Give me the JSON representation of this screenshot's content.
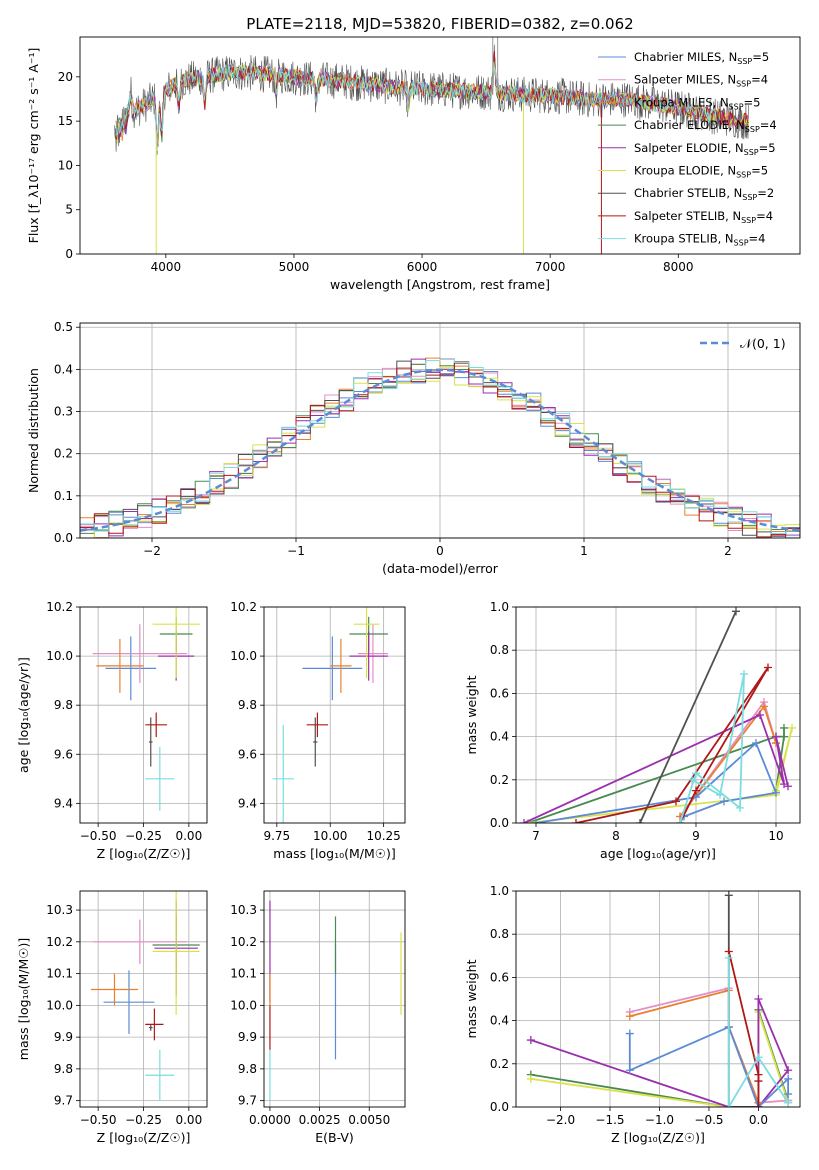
{
  "title": "PLATE=2118, MJD=53820, FIBERID=0382, z=0.062",
  "colors": [
    "#5b8bd6",
    "#e38fc6",
    "#e88030",
    "#4a8a50",
    "#9b2fae",
    "#d9e24a",
    "#505050",
    "#b01818",
    "#7adde0"
  ],
  "chart_data": [
    {
      "name": "spectrum",
      "type": "line",
      "xlabel": "wavelength [Angstrom, rest frame]",
      "ylabel": "Flux [f_λ10⁻¹⁷ erg cm⁻² s⁻¹ A⁻¹]",
      "xlim": [
        3330,
        8950
      ],
      "ylim": [
        0,
        24.5
      ],
      "xticks": [
        4000,
        5000,
        6000,
        7000,
        8000
      ],
      "yticks": [
        0,
        5,
        10,
        15,
        20
      ],
      "grid": false,
      "legend": "upper-right",
      "series": [
        {
          "name": "Chabrier MILES, N",
          "sub": "SSP",
          "suffix": "=5"
        },
        {
          "name": "Salpeter MILES, N",
          "sub": "SSP",
          "suffix": "=4"
        },
        {
          "name": "Kroupa MILES, N",
          "sub": "SSP",
          "suffix": "=5"
        },
        {
          "name": "Chabrier ELODIE, N",
          "sub": "SSP",
          "suffix": "=4"
        },
        {
          "name": "Salpeter ELODIE, N",
          "sub": "SSP",
          "suffix": "=5"
        },
        {
          "name": "Kroupa ELODIE, N",
          "sub": "SSP",
          "suffix": "=5"
        },
        {
          "name": "Chabrier STELIB, N",
          "sub": "SSP",
          "suffix": "=2"
        },
        {
          "name": "Salpeter STELIB, N",
          "sub": "SSP",
          "suffix": "=4"
        },
        {
          "name": "Kroupa STELIB, N",
          "sub": "SSP",
          "suffix": "=4"
        }
      ],
      "continuum": [
        [
          3600,
          14.5
        ],
        [
          3700,
          16
        ],
        [
          3800,
          16.5
        ],
        [
          3950,
          18
        ],
        [
          4100,
          19.5
        ],
        [
          4300,
          20
        ],
        [
          4500,
          20.5
        ],
        [
          4800,
          20.3
        ],
        [
          5100,
          19.8
        ],
        [
          5400,
          19.5
        ],
        [
          5800,
          18.8
        ],
        [
          6200,
          18.5
        ],
        [
          6500,
          18.3
        ],
        [
          6800,
          18
        ],
        [
          7100,
          17.8
        ],
        [
          7300,
          17.4
        ],
        [
          7600,
          17.5
        ],
        [
          8000,
          16.5
        ],
        [
          8300,
          15.5
        ],
        [
          8500,
          15
        ]
      ]
    },
    {
      "name": "residuals",
      "type": "histogram",
      "xlabel": "(data-model)/error",
      "ylabel": "Normed distribution",
      "xlim": [
        -2.5,
        2.5
      ],
      "ylim": [
        0,
        0.51
      ],
      "xticks": [
        -2,
        -1,
        0,
        1,
        2
      ],
      "xticklabels": [
        "−2",
        "−1",
        "0",
        "1",
        "2"
      ],
      "yticks": [
        0,
        0.1,
        0.2,
        0.3,
        0.4,
        0.5
      ],
      "yticklabels": [
        "0.0",
        "0.1",
        "0.2",
        "0.3",
        "0.4",
        "0.5"
      ],
      "bin_width": 0.1,
      "grid": true,
      "legend_label": "𝒩(0, 1)",
      "legend": "upper-right"
    },
    {
      "name": "age-vs-Z",
      "type": "errorbar",
      "xlabel": "Z [log₁₀(Z/Z☉)]",
      "ylabel": "age  [log₁₀(age/yr)]",
      "xlim": [
        -0.6,
        0.1
      ],
      "ylim": [
        9.32,
        10.2
      ],
      "xticks": [
        -0.5,
        -0.25,
        0
      ],
      "xticklabels": [
        "−0.50",
        "−0.25",
        "0.00"
      ],
      "yticks": [
        9.4,
        9.6,
        9.8,
        10.0,
        10.2
      ],
      "yticklabels": [
        "9.4",
        "9.6",
        "9.8",
        "10.0",
        "10.2"
      ],
      "grid": true,
      "points": [
        {
          "c": 0,
          "x": -0.32,
          "y": 9.95,
          "xe": 0.14,
          "ye": 0.13
        },
        {
          "c": 1,
          "x": -0.27,
          "y": 10.01,
          "xe": 0.26,
          "ye": 0.12
        },
        {
          "c": 2,
          "x": -0.38,
          "y": 9.96,
          "xe": 0.13,
          "ye": 0.11
        },
        {
          "c": 3,
          "x": -0.07,
          "y": 10.09,
          "xe": 0.09,
          "ye": 0.07
        },
        {
          "c": 4,
          "x": -0.07,
          "y": 10.0,
          "xe": 0.1,
          "ye": 0.1
        },
        {
          "c": 5,
          "x": -0.07,
          "y": 10.13,
          "xe": 0.13,
          "ye": 0.22
        },
        {
          "c": 6,
          "x": -0.21,
          "y": 9.65,
          "xe": 0.01,
          "ye": 0.1
        },
        {
          "c": 7,
          "x": -0.18,
          "y": 9.72,
          "xe": 0.06,
          "ye": 0.05
        },
        {
          "c": 8,
          "x": -0.16,
          "y": 9.5,
          "xe": 0.08,
          "ye": 0.13
        }
      ]
    },
    {
      "name": "age-vs-mass",
      "type": "errorbar",
      "xlabel": "mass [log₁₀(M/M☉)]",
      "ylabel": "",
      "xlim": [
        9.69,
        10.35
      ],
      "ylim": [
        9.32,
        10.2
      ],
      "xticks": [
        9.75,
        10.0,
        10.25
      ],
      "xticklabels": [
        "9.75",
        "10.00",
        "10.25"
      ],
      "yticks": [
        9.4,
        9.6,
        9.8,
        10.0,
        10.2
      ],
      "yticklabels": [
        "9.4",
        "9.6",
        "9.8",
        "10.0",
        "10.2"
      ],
      "grid": true,
      "points": [
        {
          "c": 0,
          "x": 10.01,
          "y": 9.95,
          "xe": 0.14,
          "ye": 0.13
        },
        {
          "c": 1,
          "x": 10.2,
          "y": 10.01,
          "xe": 0.07,
          "ye": 0.12
        },
        {
          "c": 2,
          "x": 10.05,
          "y": 9.96,
          "xe": 0.05,
          "ye": 0.11
        },
        {
          "c": 3,
          "x": 10.18,
          "y": 10.09,
          "xe": 0.09,
          "ye": 0.07
        },
        {
          "c": 4,
          "x": 10.18,
          "y": 10.0,
          "xe": 0.09,
          "ye": 0.1
        },
        {
          "c": 5,
          "x": 10.17,
          "y": 10.13,
          "xe": 0.06,
          "ye": 0.22
        },
        {
          "c": 6,
          "x": 9.93,
          "y": 9.65,
          "xe": 0.01,
          "ye": 0.1
        },
        {
          "c": 7,
          "x": 9.94,
          "y": 9.72,
          "xe": 0.05,
          "ye": 0.05
        },
        {
          "c": 8,
          "x": 9.78,
          "y": 9.5,
          "xe": 0.05,
          "ye": 0.22
        }
      ]
    },
    {
      "name": "weight-vs-age",
      "type": "line",
      "xlabel": "age  [log₁₀(age/yr)]",
      "ylabel": "mass weight",
      "xlim": [
        6.75,
        10.3
      ],
      "ylim": [
        0,
        1.0
      ],
      "xticks": [
        7,
        8,
        9,
        10
      ],
      "xticklabels": [
        "7",
        "8",
        "9",
        "10"
      ],
      "yticks": [
        0,
        0.2,
        0.4,
        0.6,
        0.8,
        1.0
      ],
      "yticklabels": [
        "0.0",
        "0.2",
        "0.4",
        "0.6",
        "0.8",
        "1.0"
      ],
      "grid": true,
      "series": [
        {
          "c": 3,
          "pts": [
            [
              6.9,
              0
            ],
            [
              10.0,
              0.4
            ],
            [
              10.1,
              0.4
            ],
            [
              10.0,
              0.15
            ],
            [
              10.1,
              0.4
            ],
            [
              10.1,
              0.44
            ]
          ]
        },
        {
          "c": 5,
          "pts": [
            [
              6.9,
              0
            ],
            [
              10.0,
              0.13
            ],
            [
              10.2,
              0.44
            ],
            [
              10.0,
              0.15
            ]
          ]
        },
        {
          "c": 1,
          "pts": [
            [
              8.8,
              0.03
            ],
            [
              9.85,
              0.56
            ],
            [
              10.0,
              0.37
            ]
          ]
        },
        {
          "c": 2,
          "pts": [
            [
              8.8,
              0.03
            ],
            [
              9.85,
              0.54
            ],
            [
              10.0,
              0.37
            ]
          ]
        },
        {
          "c": 4,
          "pts": [
            [
              6.85,
              0
            ],
            [
              9.8,
              0.5
            ],
            [
              10.1,
              0.18
            ],
            [
              10.0,
              0.4
            ],
            [
              10.15,
              0.17
            ]
          ]
        },
        {
          "c": 0,
          "pts": [
            [
              7.0,
              0
            ],
            [
              9.0,
              0.12
            ],
            [
              9.75,
              0.37
            ],
            [
              10.0,
              0.14
            ],
            [
              9.35,
              0.1
            ],
            [
              8.85,
              0.03
            ]
          ]
        },
        {
          "c": 6,
          "pts": [
            [
              8.3,
              0
            ],
            [
              9.5,
              0.98
            ]
          ]
        },
        {
          "c": 7,
          "pts": [
            [
              7.5,
              0
            ],
            [
              8.75,
              0.1
            ],
            [
              9.9,
              0.72
            ],
            [
              9.0,
              0.15
            ],
            [
              8.8,
              0
            ]
          ]
        },
        {
          "c": 8,
          "pts": [
            [
              8.8,
              0
            ],
            [
              9.0,
              0.23
            ],
            [
              9.55,
              0.07
            ],
            [
              9.6,
              0.69
            ],
            [
              9.3,
              0.13
            ],
            [
              8.95,
              0.2
            ]
          ]
        }
      ]
    },
    {
      "name": "mass-vs-Z",
      "type": "errorbar",
      "xlabel": "Z [log₁₀(Z/Z☉)]",
      "ylabel": "mass [log₁₀(M/M☉)]",
      "xlim": [
        -0.6,
        0.1
      ],
      "ylim": [
        9.68,
        10.36
      ],
      "xticks": [
        -0.5,
        -0.25,
        0
      ],
      "xticklabels": [
        "−0.50",
        "−0.25",
        "0.00"
      ],
      "yticks": [
        9.7,
        9.8,
        9.9,
        10.0,
        10.1,
        10.2,
        10.3
      ],
      "yticklabels": [
        "9.7",
        "9.8",
        "9.9",
        "10.0",
        "10.1",
        "10.2",
        "10.3"
      ],
      "grid": true,
      "points": [
        {
          "c": 0,
          "x": -0.33,
          "y": 10.01,
          "xe": 0.14,
          "ye": 0.1
        },
        {
          "c": 1,
          "x": -0.27,
          "y": 10.2,
          "xe": 0.26,
          "ye": 0.07
        },
        {
          "c": 2,
          "x": -0.41,
          "y": 10.05,
          "xe": 0.13,
          "ye": 0.05
        },
        {
          "c": 3,
          "x": -0.07,
          "y": 10.19,
          "xe": 0.13,
          "ye": 0.09
        },
        {
          "c": 4,
          "x": -0.07,
          "y": 10.18,
          "xe": 0.12,
          "ye": 0.15
        },
        {
          "c": 5,
          "x": -0.07,
          "y": 10.17,
          "xe": 0.13,
          "ye": 0.2
        },
        {
          "c": 6,
          "x": -0.21,
          "y": 9.93,
          "xe": 0.01,
          "ye": 0.01
        },
        {
          "c": 7,
          "x": -0.19,
          "y": 9.94,
          "xe": 0.05,
          "ye": 0.05
        },
        {
          "c": 8,
          "x": -0.16,
          "y": 9.78,
          "xe": 0.08,
          "ye": 0.08
        }
      ]
    },
    {
      "name": "mass-vs-EBV",
      "type": "errorbar",
      "xlabel": "E(B-V)",
      "ylabel": "",
      "xlim": [
        -0.0003,
        0.0068
      ],
      "ylim": [
        9.68,
        10.36
      ],
      "xticks": [
        0,
        0.0025,
        0.005
      ],
      "xticklabels": [
        "0.0000",
        "0.0025",
        "0.0050"
      ],
      "yticks": [
        9.7,
        9.8,
        9.9,
        10.0,
        10.1,
        10.2,
        10.3
      ],
      "yticklabels": [
        "9.7",
        "9.8",
        "9.9",
        "10.0",
        "10.1",
        "10.2",
        "10.3"
      ],
      "grid": true,
      "points": [
        {
          "c": 0,
          "x": 0.0033,
          "y": 10.01,
          "xe": 0,
          "ye": 0.18
        },
        {
          "c": 3,
          "x": 0.0033,
          "y": 10.19,
          "xe": 0,
          "ye": 0.09
        },
        {
          "c": 5,
          "x": 0.0066,
          "y": 10.1,
          "xe": 0,
          "ye": 0.13
        },
        {
          "c": 4,
          "x": 0.0,
          "y": 10.17,
          "xe": 0,
          "ye": 0.16
        },
        {
          "c": 2,
          "x": 0.0,
          "y": 10.05,
          "xe": 0,
          "ye": 0.05
        },
        {
          "c": 7,
          "x": 0.0,
          "y": 9.93,
          "xe": 0,
          "ye": 0.07
        },
        {
          "c": 8,
          "x": 0.0,
          "y": 9.78,
          "xe": 0,
          "ye": 0.08
        }
      ]
    },
    {
      "name": "weight-vs-Z",
      "type": "line",
      "xlabel": "Z [log₁₀(Z/Z☉)]",
      "ylabel": "mass weight",
      "xlim": [
        -2.45,
        0.42
      ],
      "ylim": [
        0,
        1.0
      ],
      "xticks": [
        -2,
        -1.5,
        -1,
        -0.5,
        0
      ],
      "xticklabels": [
        "−2.0",
        "−1.5",
        "−1.0",
        "−0.5",
        "0.0"
      ],
      "yticks": [
        0,
        0.2,
        0.4,
        0.6,
        0.8,
        1.0
      ],
      "yticklabels": [
        "0.0",
        "0.2",
        "0.4",
        "0.6",
        "0.8",
        "1.0"
      ],
      "grid": true,
      "series": [
        {
          "c": 3,
          "pts": [
            [
              -2.3,
              0.15
            ],
            [
              -0.3,
              0
            ],
            [
              0,
              0
            ],
            [
              0,
              0.45
            ],
            [
              0.3,
              0.03
            ]
          ]
        },
        {
          "c": 5,
          "pts": [
            [
              -2.3,
              0.13
            ],
            [
              -0.3,
              0
            ],
            [
              0,
              0
            ],
            [
              0,
              0.44
            ],
            [
              0.3,
              0.02
            ]
          ]
        },
        {
          "c": 4,
          "pts": [
            [
              -2.3,
              0.31
            ],
            [
              -0.3,
              0
            ],
            [
              0,
              0
            ],
            [
              0,
              0.5
            ],
            [
              0.3,
              0.17
            ],
            [
              0,
              0
            ]
          ]
        },
        {
          "c": 1,
          "pts": [
            [
              -1.3,
              0.44
            ],
            [
              -0.3,
              0.55
            ],
            [
              -0.3,
              0.37
            ],
            [
              0,
              0.02
            ],
            [
              0.3,
              0.03
            ]
          ]
        },
        {
          "c": 2,
          "pts": [
            [
              -1.3,
              0.42
            ],
            [
              -0.3,
              0.54
            ],
            [
              -0.3,
              0.37
            ],
            [
              0,
              0.02
            ]
          ]
        },
        {
          "c": 0,
          "pts": [
            [
              -1.3,
              0.34
            ],
            [
              -1.3,
              0.17
            ],
            [
              -0.3,
              0.37
            ],
            [
              0,
              0
            ],
            [
              0.3,
              0.13
            ],
            [
              0.3,
              0.06
            ]
          ]
        },
        {
          "c": 6,
          "pts": [
            [
              -0.3,
              0.98
            ],
            [
              -0.3,
              0
            ],
            [
              0,
              0
            ]
          ]
        },
        {
          "c": 7,
          "pts": [
            [
              -0.3,
              0.72
            ],
            [
              0,
              0.15
            ],
            [
              0,
              0.12
            ],
            [
              0,
              0
            ]
          ]
        },
        {
          "c": 8,
          "pts": [
            [
              -0.3,
              0.69
            ],
            [
              -0.3,
              0
            ],
            [
              0,
              0.23
            ],
            [
              0.3,
              0.02
            ]
          ]
        }
      ]
    }
  ]
}
